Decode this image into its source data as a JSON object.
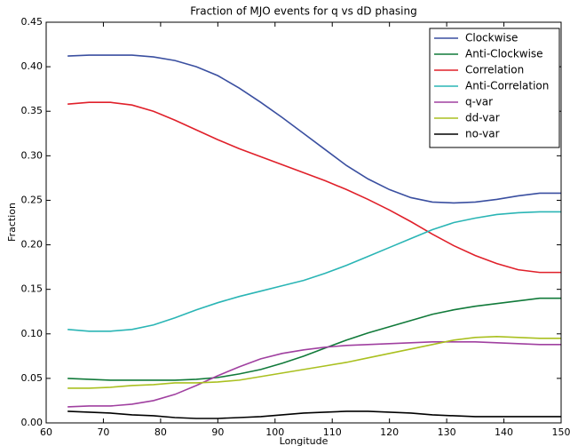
{
  "chart_data": {
    "type": "line",
    "title": "Fraction of MJO events for q vs dD phasing",
    "xlabel": "Longitude",
    "ylabel": "Fraction",
    "x": [
      63.75,
      67.5,
      71.25,
      75,
      78.75,
      82.5,
      86.25,
      90,
      93.75,
      97.5,
      101.25,
      105,
      108.75,
      112.5,
      116.25,
      120,
      123.75,
      127.5,
      131.25,
      135,
      138.75,
      142.5,
      146.25,
      150
    ],
    "xlim": [
      60,
      150
    ],
    "xticks": [
      60,
      70,
      80,
      90,
      100,
      110,
      120,
      130,
      140,
      150
    ],
    "ylim": [
      0,
      0.45
    ],
    "yticks": [
      {
        "value": 0,
        "label": "0.00"
      },
      {
        "value": 0.05,
        "label": "0.05"
      },
      {
        "value": 0.1,
        "label": "0.10"
      },
      {
        "value": 0.15,
        "label": "0.15"
      },
      {
        "value": 0.2,
        "label": "0.20"
      },
      {
        "value": 0.25,
        "label": "0.25"
      },
      {
        "value": 0.3,
        "label": "0.30"
      },
      {
        "value": 0.35,
        "label": "0.35"
      },
      {
        "value": 0.4,
        "label": "0.40"
      },
      {
        "value": 0.45,
        "label": "0.45"
      }
    ],
    "legend": "upper right",
    "series": [
      {
        "name": "Clockwise",
        "color": "#3a4fa0",
        "values": [
          0.412,
          0.413,
          0.413,
          0.413,
          0.411,
          0.407,
          0.4,
          0.39,
          0.376,
          0.36,
          0.343,
          0.325,
          0.307,
          0.289,
          0.274,
          0.262,
          0.253,
          0.248,
          0.247,
          0.248,
          0.251,
          0.255,
          0.258,
          0.258
        ]
      },
      {
        "name": "Anti-Clockwise",
        "color": "#117a3a",
        "values": [
          0.05,
          0.049,
          0.048,
          0.048,
          0.048,
          0.048,
          0.049,
          0.051,
          0.055,
          0.06,
          0.067,
          0.075,
          0.084,
          0.093,
          0.101,
          0.108,
          0.115,
          0.122,
          0.127,
          0.131,
          0.134,
          0.137,
          0.14,
          0.14
        ]
      },
      {
        "name": "Correlation",
        "color": "#e0202a",
        "values": [
          0.358,
          0.36,
          0.36,
          0.357,
          0.35,
          0.34,
          0.329,
          0.318,
          0.308,
          0.299,
          0.29,
          0.281,
          0.272,
          0.262,
          0.251,
          0.239,
          0.226,
          0.212,
          0.199,
          0.188,
          0.179,
          0.172,
          0.169,
          0.169
        ]
      },
      {
        "name": "Anti-Correlation",
        "color": "#2ab5b5",
        "values": [
          0.105,
          0.103,
          0.103,
          0.105,
          0.11,
          0.118,
          0.127,
          0.135,
          0.142,
          0.148,
          0.154,
          0.16,
          0.168,
          0.177,
          0.187,
          0.197,
          0.207,
          0.217,
          0.225,
          0.23,
          0.234,
          0.236,
          0.237,
          0.237
        ]
      },
      {
        "name": "q-var",
        "color": "#a040a0",
        "values": [
          0.018,
          0.019,
          0.019,
          0.021,
          0.025,
          0.032,
          0.042,
          0.053,
          0.063,
          0.072,
          0.078,
          0.082,
          0.085,
          0.087,
          0.088,
          0.089,
          0.09,
          0.091,
          0.091,
          0.091,
          0.09,
          0.089,
          0.088,
          0.088
        ]
      },
      {
        "name": "dd-var",
        "color": "#aac020",
        "values": [
          0.039,
          0.039,
          0.04,
          0.042,
          0.043,
          0.045,
          0.045,
          0.046,
          0.048,
          0.052,
          0.056,
          0.06,
          0.064,
          0.068,
          0.073,
          0.078,
          0.083,
          0.088,
          0.093,
          0.096,
          0.097,
          0.096,
          0.095,
          0.095
        ]
      },
      {
        "name": "no-var",
        "color": "#000000",
        "values": [
          0.013,
          0.012,
          0.011,
          0.009,
          0.008,
          0.006,
          0.005,
          0.005,
          0.006,
          0.007,
          0.009,
          0.011,
          0.012,
          0.013,
          0.013,
          0.012,
          0.011,
          0.009,
          0.008,
          0.007,
          0.007,
          0.007,
          0.007,
          0.007
        ]
      }
    ]
  }
}
